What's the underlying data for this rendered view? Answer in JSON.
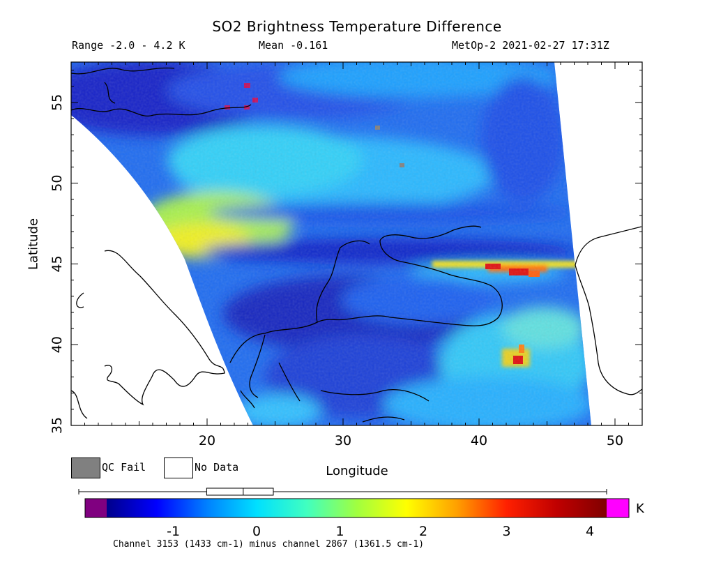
{
  "header": {
    "title": "SO2 Brightness Temperature Difference",
    "range": "Range -2.0 - 4.2 K",
    "mean": "Mean -0.161",
    "satellite_time": "MetOp-2 2021-02-27 17:31Z"
  },
  "legend": {
    "qc_fail": "QC Fail",
    "no_data": "No Data",
    "qc_fail_color": "#808080",
    "no_data_color": "#ffffff"
  },
  "colorbar": {
    "unit": "K",
    "ticks": [
      "-1",
      "0",
      "1",
      "2",
      "3",
      "4"
    ],
    "tick_values": [
      -1,
      0,
      1,
      2,
      3,
      4
    ],
    "range": [
      -1.8,
      4.2
    ],
    "under_color": "#800080",
    "over_color": "#ff00ff",
    "colors": [
      "#00008b",
      "#0000ff",
      "#0080ff",
      "#00e0ff",
      "#40ffc0",
      "#a0ff40",
      "#ffff00",
      "#ffa000",
      "#ff2000",
      "#c00000",
      "#800000"
    ]
  },
  "footnote": "Channel 3153 (1433 cm-1) minus channel 2867 (1361.5 cm-1)",
  "chart_data": {
    "type": "heatmap",
    "title": "SO2 Brightness Temperature Difference",
    "xlabel": "Longitude",
    "ylabel": "Latitude",
    "xlim": [
      10,
      52
    ],
    "ylim": [
      35,
      57.5
    ],
    "x_ticks": [
      "20",
      "30",
      "40",
      "50"
    ],
    "x_tick_values": [
      20,
      30,
      40,
      50
    ],
    "y_ticks": [
      "35",
      "40",
      "45",
      "50",
      "55"
    ],
    "y_tick_values": [
      35,
      40,
      45,
      50,
      55
    ],
    "value_range": [
      -2.0,
      4.2
    ],
    "mean": -0.161,
    "features": [
      {
        "lon_range": [
          40.5,
          45
        ],
        "lat": 44.6,
        "value": 3.8
      },
      {
        "lon_range": [
          42.5,
          43.5
        ],
        "lat": 38.6,
        "value": 3.6
      },
      {
        "lon_range": [
          17,
          24
        ],
        "lat": 46,
        "value": 1.8
      },
      {
        "lon_range": [
          26,
          34
        ],
        "lat": 41.5,
        "value": -1.3
      },
      {
        "lon_range": [
          11,
          30
        ],
        "lat": 54,
        "value": -1.2
      }
    ]
  }
}
